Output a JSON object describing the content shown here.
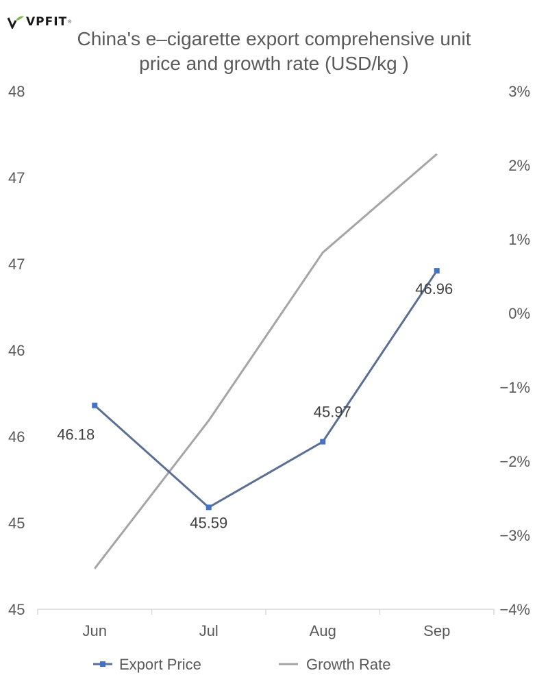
{
  "brand": {
    "logo_text": "VPFIT"
  },
  "chart_data": {
    "type": "line",
    "title_lines": [
      "China's e–cigarette export comprehensive unit",
      "price and growth rate (USD/kg )"
    ],
    "categories": [
      "Jun",
      "Jul",
      "Aug",
      "Sep"
    ],
    "y_left": {
      "range": [
        45,
        48
      ],
      "tick_values": [
        45,
        45.5,
        46,
        46.5,
        47,
        47.5,
        48
      ],
      "tick_labels": [
        "45",
        "45",
        "46",
        "46",
        "47",
        "47",
        "48"
      ]
    },
    "y_right": {
      "range": [
        -4,
        3
      ],
      "tick_values": [
        -4,
        -3,
        -2,
        -1,
        0,
        1,
        2,
        3
      ],
      "tick_labels": [
        "−4%",
        "−3%",
        "−2%",
        "−1%",
        "0%",
        "1%",
        "2%",
        "3%"
      ]
    },
    "series": [
      {
        "name": "Export Price",
        "axis": "left",
        "color": "#5a6f93",
        "marker_color": "#4472c4",
        "marker": "square",
        "values": [
          46.18,
          45.59,
          45.97,
          46.96
        ],
        "data_labels": [
          "46.18",
          "45.59",
          "45.97",
          "46.96"
        ]
      },
      {
        "name": "Growth Rate",
        "axis": "right",
        "color": "#a5a5a5",
        "marker": "none",
        "values": [
          -3.45,
          -1.45,
          0.82,
          2.15
        ]
      }
    ],
    "grid": false,
    "legend_position": "bottom"
  }
}
